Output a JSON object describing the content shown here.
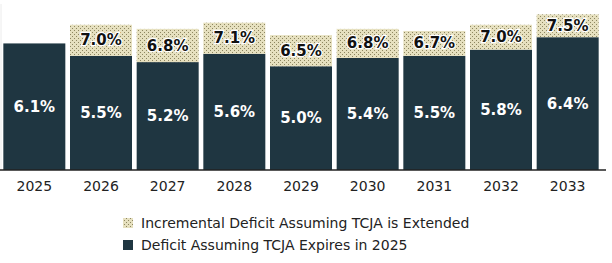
{
  "chart_data": {
    "type": "bar",
    "stacked": true,
    "categories": [
      "2025",
      "2026",
      "2027",
      "2028",
      "2029",
      "2030",
      "2031",
      "2032",
      "2033"
    ],
    "series": [
      {
        "name": "Deficit Assuming TCJA Expires in 2025",
        "color": "#1f3641",
        "values": [
          6.1,
          5.5,
          5.2,
          5.6,
          5.0,
          5.4,
          5.5,
          5.8,
          6.4
        ],
        "value_labels": [
          "6.1%",
          "5.5%",
          "5.2%",
          "5.6%",
          "5.0%",
          "5.4%",
          "5.5%",
          "5.8%",
          "6.4%"
        ]
      },
      {
        "name": "Incremental Deficit Assuming TCJA is Extended",
        "color": "#e6e0bf",
        "values": [
          null,
          1.5,
          1.6,
          1.5,
          1.5,
          1.4,
          1.2,
          1.2,
          1.1
        ],
        "totals": [
          null,
          7.0,
          6.8,
          7.1,
          6.5,
          6.8,
          6.7,
          7.0,
          7.5
        ],
        "total_labels": [
          null,
          "7.0%",
          "6.8%",
          "7.1%",
          "6.5%",
          "6.8%",
          "6.7%",
          "7.0%",
          "7.5%"
        ]
      }
    ],
    "ylim": [
      0,
      8
    ],
    "data_labels": true,
    "tick_labels": "x",
    "grid": false,
    "legend": "bottom"
  }
}
